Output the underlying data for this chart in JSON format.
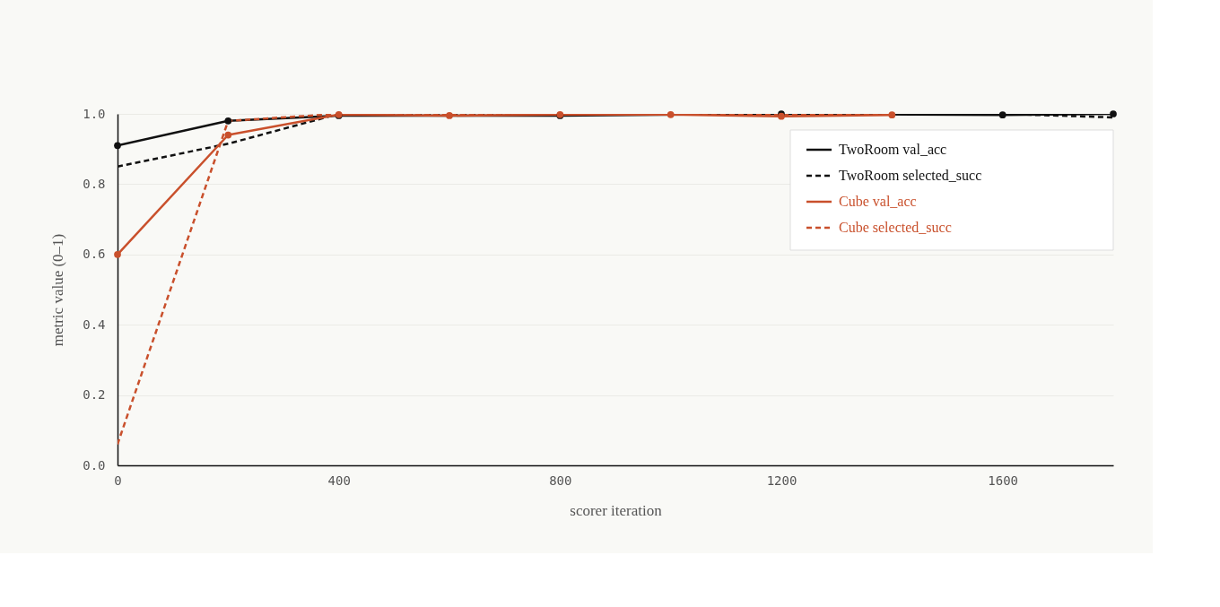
{
  "chart_data": {
    "type": "line",
    "xlabel": "scorer iteration",
    "ylabel": "metric value (0–1)",
    "xlim": [
      0,
      1800
    ],
    "xticks": [
      0,
      400,
      800,
      1200,
      1600
    ],
    "ylim": [
      0,
      1
    ],
    "yticks": [
      {
        "value": 0,
        "label": "0.0"
      },
      {
        "value": 0.2,
        "label": "0.2"
      },
      {
        "value": 0.4,
        "label": "0.4"
      },
      {
        "value": 0.6,
        "label": "0.6"
      },
      {
        "value": 0.8,
        "label": "0.8"
      },
      {
        "value": 1,
        "label": "1.0"
      }
    ],
    "grid": "y",
    "legend": "top right",
    "series": [
      {
        "name": "TwoRoom val_acc",
        "color": "#111111",
        "line_style": "solid",
        "marker": "circle",
        "x": [
          0,
          200,
          400,
          800,
          1200,
          1600,
          1800
        ],
        "values": [
          0.91,
          0.98,
          0.995,
          0.995,
          1.0,
          0.997,
          1.0
        ]
      },
      {
        "name": "TwoRoom selected_succ",
        "color": "#111111",
        "line_style": "dashed",
        "marker": "none",
        "x": [
          0,
          200,
          400,
          600,
          800,
          1000,
          1200,
          1400,
          1600,
          1800
        ],
        "values": [
          0.85,
          0.915,
          1.0,
          1.0,
          1.0,
          1.0,
          1.0,
          1.0,
          1.0,
          0.99
        ]
      },
      {
        "name": "Cube val_acc",
        "color": "#c9502c",
        "line_style": "solid",
        "marker": "circle",
        "x": [
          0,
          200,
          400,
          600,
          800,
          1000,
          1200,
          1400
        ],
        "values": [
          0.6,
          0.94,
          0.998,
          0.995,
          0.998,
          0.998,
          0.993,
          0.997
        ]
      },
      {
        "name": "Cube selected_succ",
        "color": "#c9502c",
        "line_style": "dashed",
        "marker": "none",
        "x": [
          0,
          200,
          400,
          600,
          800,
          1000,
          1200,
          1400
        ],
        "values": [
          0.06,
          0.98,
          1.0,
          0.998,
          0.998,
          0.998,
          0.998,
          0.998
        ]
      }
    ]
  }
}
